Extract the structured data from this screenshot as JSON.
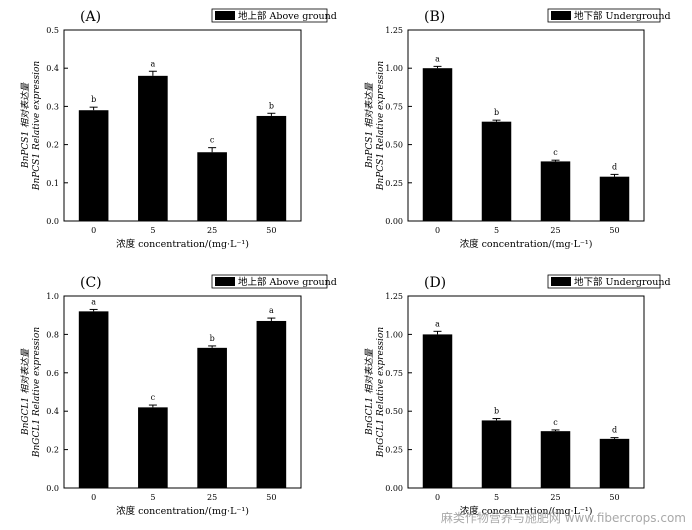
{
  "watermark": "麻类作物营养与施肥网 www.fibercrops.com",
  "chart_data": [
    {
      "type": "bar",
      "panel_label": "(A)",
      "legend": "地上部 Above ground",
      "categories": [
        "0",
        "5",
        "25",
        "50"
      ],
      "values": [
        0.29,
        0.38,
        0.18,
        0.275
      ],
      "errors": [
        0.008,
        0.012,
        0.012,
        0.007
      ],
      "significance": [
        "b",
        "a",
        "c",
        "b"
      ],
      "ylim": [
        0,
        0.5
      ],
      "yticks": [
        "0.0",
        "0.1",
        "0.2",
        "0.3",
        "0.4",
        "0.5"
      ],
      "ytick_values": [
        0,
        0.1,
        0.2,
        0.3,
        0.4,
        0.5
      ],
      "ylabel_line1": "BnPCS1 相对表达量",
      "ylabel_line2": "BnPCS1 Relative expression",
      "xlabel": "浓度 concentration/(mg·L⁻¹)"
    },
    {
      "type": "bar",
      "panel_label": "(B)",
      "legend": "地下部 Underground",
      "categories": [
        "0",
        "5",
        "25",
        "50"
      ],
      "values": [
        1.0,
        0.65,
        0.39,
        0.29
      ],
      "errors": [
        0.012,
        0.01,
        0.008,
        0.015
      ],
      "significance": [
        "a",
        "b",
        "c",
        "d"
      ],
      "ylim": [
        0,
        1.25
      ],
      "yticks": [
        "0.00",
        "0.25",
        "0.50",
        "0.75",
        "1.00",
        "1.25"
      ],
      "ytick_values": [
        0,
        0.25,
        0.5,
        0.75,
        1.0,
        1.25
      ],
      "ylabel_line1": "BnPCS1 相对表达量",
      "ylabel_line2": "BnPCS1 Relative expression",
      "xlabel": "浓度 concentration/(mg·L⁻¹)"
    },
    {
      "type": "bar",
      "panel_label": "(C)",
      "legend": "地上部 Above ground",
      "categories": [
        "0",
        "5",
        "25",
        "50"
      ],
      "values": [
        0.92,
        0.42,
        0.73,
        0.87
      ],
      "errors": [
        0.01,
        0.012,
        0.01,
        0.015
      ],
      "significance": [
        "a",
        "c",
        "b",
        "a"
      ],
      "ylim": [
        0,
        1.0
      ],
      "yticks": [
        "0.0",
        "0.2",
        "0.4",
        "0.6",
        "0.8",
        "1.0"
      ],
      "ytick_values": [
        0,
        0.2,
        0.4,
        0.6,
        0.8,
        1.0
      ],
      "ylabel_line1": "BnGCL1 相对表达量",
      "ylabel_line2": "BnGCL1 Relative expression",
      "xlabel": "浓度 concentration/(mg·L⁻¹)"
    },
    {
      "type": "bar",
      "panel_label": "(D)",
      "legend": "地下部 Underground",
      "categories": [
        "0",
        "5",
        "25",
        "50"
      ],
      "values": [
        1.0,
        0.44,
        0.37,
        0.32
      ],
      "errors": [
        0.02,
        0.012,
        0.008,
        0.008
      ],
      "significance": [
        "a",
        "b",
        "c",
        "d"
      ],
      "ylim": [
        0,
        1.25
      ],
      "yticks": [
        "0.00",
        "0.25",
        "0.50",
        "0.75",
        "1.00",
        "1.25"
      ],
      "ytick_values": [
        0,
        0.25,
        0.5,
        0.75,
        1.0,
        1.25
      ],
      "ylabel_line1": "BnGCL1 相对表达量",
      "ylabel_line2": "BnGCL1 Relative expression",
      "xlabel": "浓度 concentration/(mg·L⁻¹)"
    }
  ]
}
